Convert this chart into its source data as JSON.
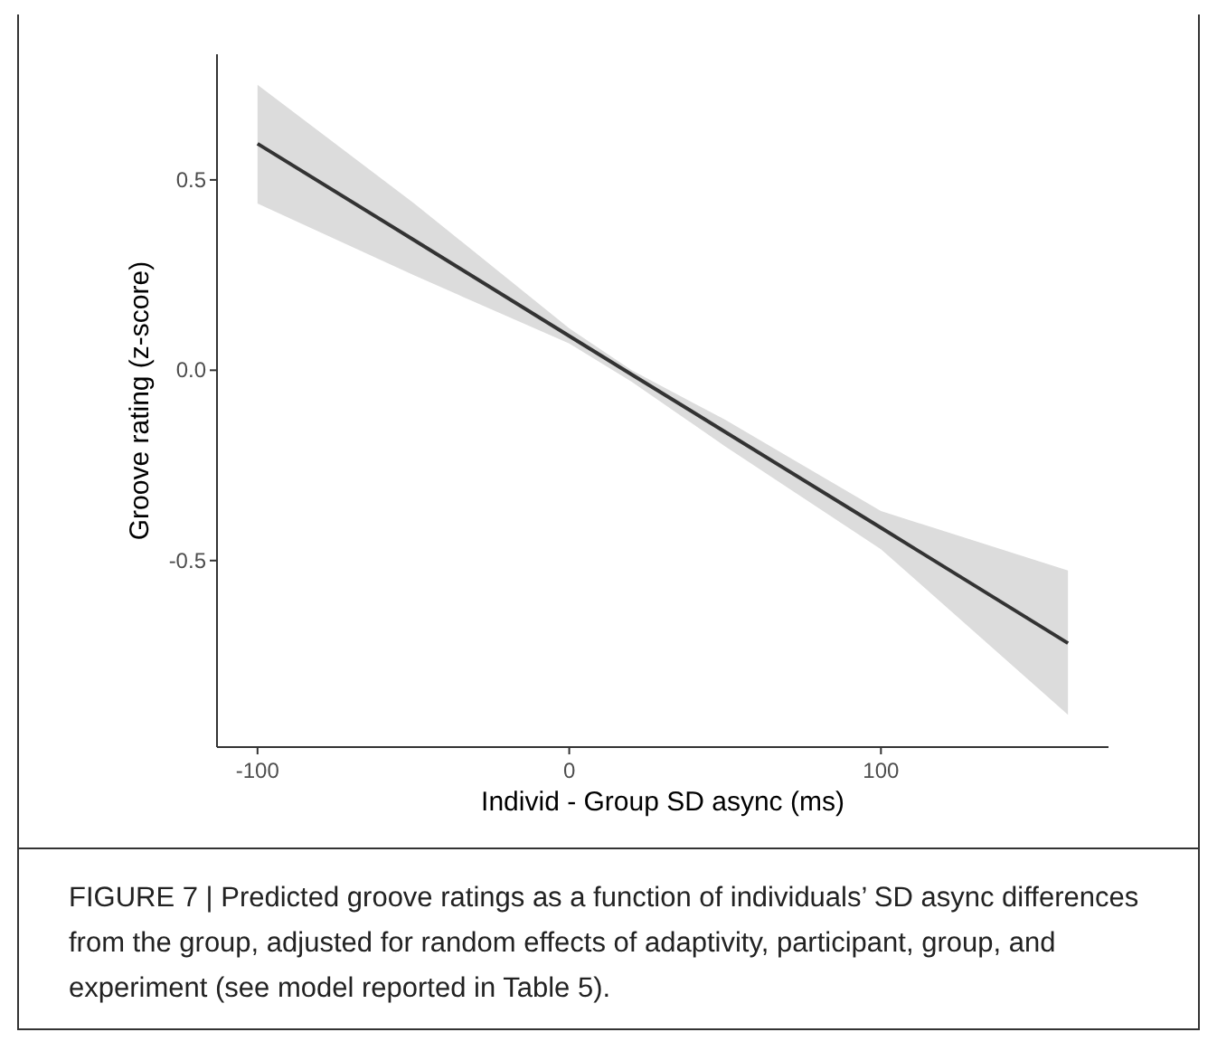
{
  "chart_data": {
    "type": "line",
    "xlabel": "Individ - Group SD async (ms)",
    "ylabel": "Groove rating (z-score)",
    "xlim": [
      -113,
      173
    ],
    "xticks": [
      -100,
      0,
      100
    ],
    "ylim": [
      -0.99,
      0.83
    ],
    "yticks": [
      {
        "value": -0.5,
        "label": "-0.5"
      },
      {
        "value": 0,
        "label": "0.0"
      },
      {
        "value": 0.5,
        "label": "0.5"
      }
    ],
    "grid": false,
    "marker": "none",
    "line_style": "solid",
    "series": [
      {
        "color": "#333333",
        "x": [
          -100,
          -50,
          0,
          20,
          50,
          100,
          160
        ],
        "values": [
          0.595,
          0.343,
          0.09,
          -0.011,
          -0.162,
          -0.414,
          -0.717
        ],
        "upper": [
          0.75,
          0.44,
          0.11,
          0.0,
          -0.13,
          -0.37,
          -0.526
        ],
        "lower": [
          0.438,
          0.25,
          0.07,
          -0.03,
          -0.2,
          -0.47,
          -0.905
        ]
      }
    ],
    "annotations": [
      "FIGURE 7 | Predicted groove ratings as a function of individuals’ SD async differences from the group, adjusted for random effects of adaptivity, participant, group, and experiment (see model reported in Table 5)."
    ]
  }
}
